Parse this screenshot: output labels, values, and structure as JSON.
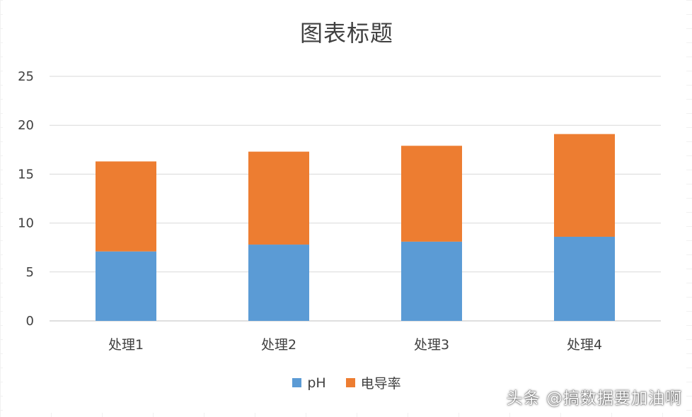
{
  "chart_data": {
    "type": "bar",
    "stacked": true,
    "title": "图表标题",
    "categories": [
      "处理1",
      "处理2",
      "处理3",
      "处理4"
    ],
    "series": [
      {
        "name": "pH",
        "color": "#5B9BD5",
        "values": [
          7.1,
          7.8,
          8.1,
          8.6
        ]
      },
      {
        "name": "电导率",
        "color": "#ED7D31",
        "values": [
          9.2,
          9.5,
          9.8,
          10.5
        ]
      }
    ],
    "ylim": [
      0,
      25
    ],
    "yticks": [
      0,
      5,
      10,
      15,
      20,
      25
    ],
    "grid": true,
    "legend_position": "bottom"
  },
  "watermark": "头条 @搞数据要加油啊"
}
